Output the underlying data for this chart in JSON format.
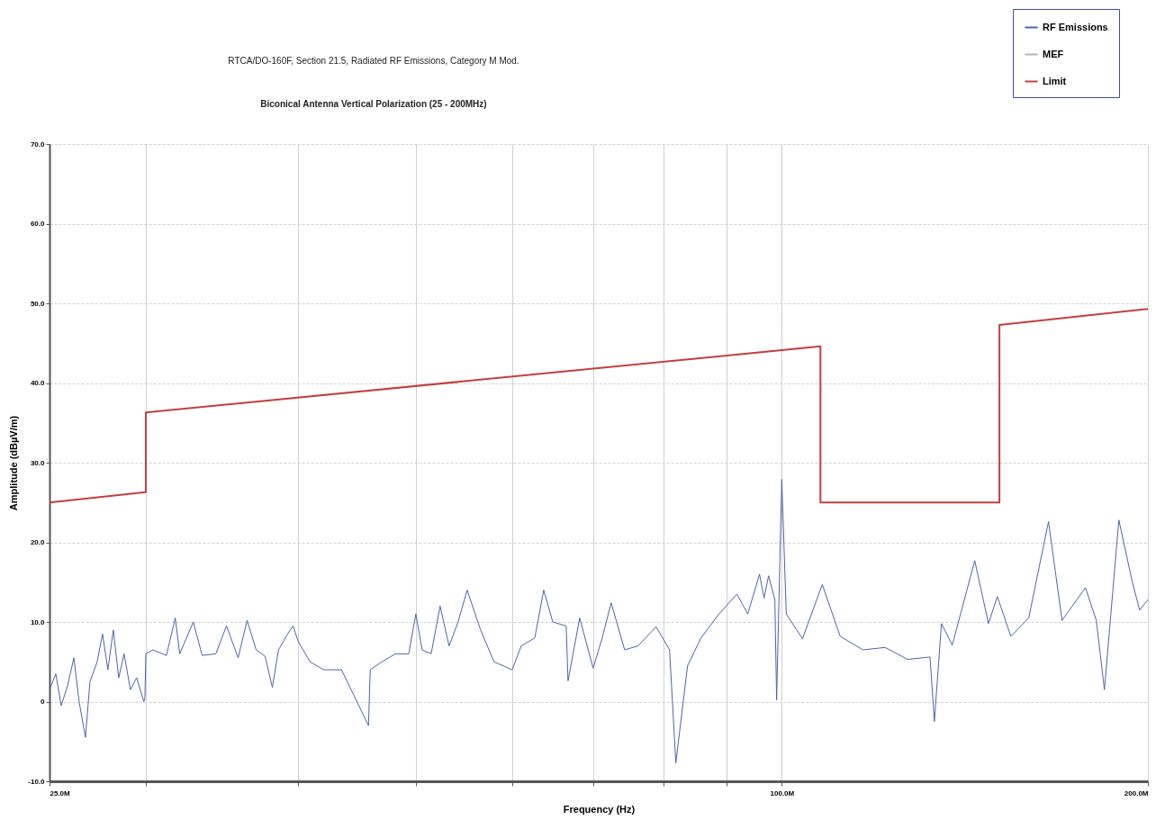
{
  "chart_data": {
    "type": "line",
    "title": "RTCA/DO-160F, Section 21.5, Radiated RF Emissions, Category M Mod.",
    "subtitle": "Biconical Antenna Vertical Polarization (25 - 200MHz)",
    "xlabel": "Frequency (Hz)",
    "ylabel": "Amplitude (dBµV/m)",
    "log": "x",
    "xlim": [
      25000000.0,
      200000000.0
    ],
    "xticks": [
      {
        "value": 25000000.0,
        "label": "25.0M"
      },
      {
        "value": 30000000.0,
        "label": null
      },
      {
        "value": 40000000.0,
        "label": null
      },
      {
        "value": 50000000.0,
        "label": null
      },
      {
        "value": 60000000.0,
        "label": null
      },
      {
        "value": 70000000.0,
        "label": null
      },
      {
        "value": 80000000.0,
        "label": null
      },
      {
        "value": 90000000.0,
        "label": null
      },
      {
        "value": 100000000.0,
        "label": "100.0M"
      },
      {
        "value": 200000000.0,
        "label": "200.0M"
      }
    ],
    "ylim": [
      -10,
      70
    ],
    "yticks": [
      {
        "value": -10,
        "label": "-10.0"
      },
      0,
      {
        "value": 10,
        "label": "10.0"
      },
      {
        "value": 20,
        "label": "20.0"
      },
      {
        "value": 30,
        "label": "30.0"
      },
      {
        "value": 40,
        "label": "40.0"
      },
      {
        "value": 50,
        "label": "50.0"
      },
      {
        "value": 60,
        "label": "60.0"
      },
      {
        "value": 70,
        "label": "70.0"
      }
    ],
    "grid": true,
    "legend": "top right",
    "series": [
      {
        "name": "RF Emissions",
        "color": "#4a64a8",
        "x": [
          25000000.0,
          25300000.0,
          25560000.0,
          25870000.0,
          26180000.0,
          26440000.0,
          26760000.0,
          26990000.0,
          27360000.0,
          27640000.0,
          27920000.0,
          28210000.0,
          28500000.0,
          28790000.0,
          29140000.0,
          29480000.0,
          29890000.0,
          29950000.0,
          30000000.0,
          30400000.0,
          31190000.0,
          31720000.0,
          31990000.0,
          32820000.0,
          33380000.0,
          34250000.0,
          34950000.0,
          35730000.0,
          36340000.0,
          36970000.0,
          37600000.0,
          38120000.0,
          38570000.0,
          39240000.0,
          39640000.0,
          40050000.0,
          40940000.0,
          42000000.0,
          43450000.0,
          45730000.0,
          45880000.0,
          46910000.0,
          48120000.0,
          49350000.0,
          50020000.0,
          50620000.0,
          51490000.0,
          52370000.0,
          53270000.0,
          54180000.0,
          55120000.0,
          56540000.0,
          58000000.0,
          60030000.0,
          61060000.0,
          62650000.0,
          63720000.0,
          64820000.0,
          66490000.0,
          66720000.0,
          68210000.0,
          69970000.0,
          71180000.0,
          72400000.0,
          74270000.0,
          76190000.0,
          78830000.0,
          80860000.0,
          81830000.0,
          83660000.0,
          85820000.0,
          88790000.0,
          91860000.0,
          93760000.0,
          95880000.0,
          96700000.0,
          97530000.0,
          98700000.0,
          99030000.0,
          100000000.0,
          100860000.0,
          104000000.0,
          107970000.0,
          111700000.0,
          116600000.0,
          121600000.0,
          126900000.0,
          132400000.0,
          133500000.0,
          135300000.0,
          138100000.0,
          144100000.0,
          147900000.0,
          150400000.0,
          154300000.0,
          159600000.0,
          165700000.0,
          170000000.0,
          177700000.0,
          181400000.0,
          184200000.0,
          189300000.0,
          194200000.0,
          196900000.0,
          200000000.0
        ],
        "values": [
          1.5,
          3.5,
          -0.5,
          2,
          5.5,
          0,
          -4.5,
          2.5,
          5,
          8.5,
          4,
          9,
          3,
          6,
          1.5,
          3,
          0,
          0.5,
          6,
          6.5,
          5.8,
          10.5,
          6,
          10,
          5.8,
          6,
          9.5,
          5.5,
          10.2,
          6.5,
          5.7,
          1.8,
          6.5,
          8.5,
          9.5,
          7.5,
          5,
          4,
          4,
          -3,
          4,
          5,
          6,
          6,
          11,
          6.5,
          6,
          12,
          7,
          10,
          14,
          9,
          5,
          4,
          7,
          8,
          14,
          10,
          9.5,
          2.6,
          10.5,
          4.2,
          8,
          12.4,
          6.5,
          7,
          9.4,
          6.5,
          -7.7,
          4.5,
          8,
          11,
          13.5,
          11,
          16,
          13,
          15.8,
          12.8,
          0.2,
          27.9,
          11,
          7.9,
          14.7,
          8.2,
          6.5,
          6.8,
          5.3,
          5.6,
          -2.5,
          9.8,
          7.1,
          17.7,
          9.8,
          13.2,
          8.2,
          10.5,
          22.6,
          10.2,
          14.3,
          10.2,
          1.5,
          22.8,
          15,
          11.5,
          12.8
        ]
      },
      {
        "name": "MEF",
        "color": "#b4b4b4"
      },
      {
        "name": "Limit",
        "color": "#c0403f",
        "x": [
          25000000.0,
          30000000.0,
          30000000.0,
          107600000.0,
          107600000.0,
          151000000.0,
          151000000.0,
          200000000.0
        ],
        "values": [
          25,
          26.3,
          36.3,
          44.6,
          25,
          25,
          47.3,
          49.3
        ]
      }
    ]
  }
}
